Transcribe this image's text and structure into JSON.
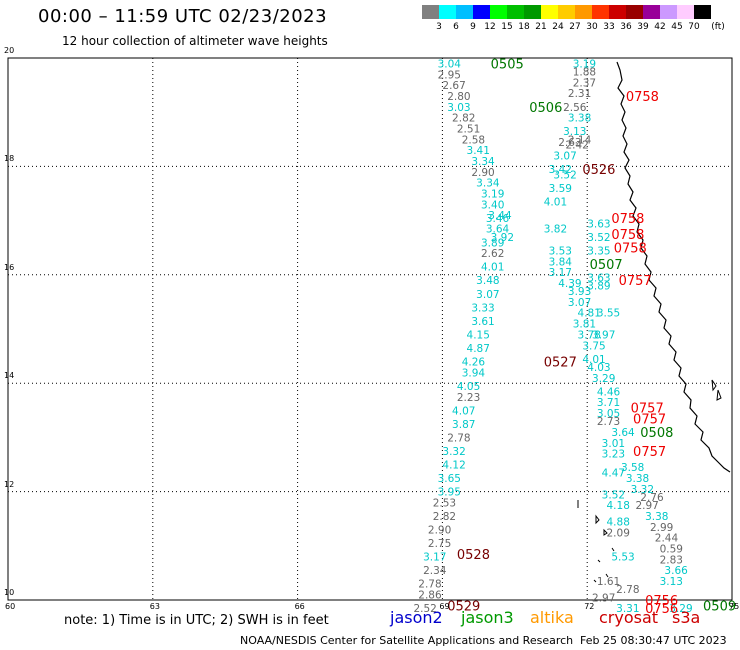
{
  "title": "00:00 – 11:59 UTC 02/23/2023",
  "subtitle": "12 hour collection of altimeter wave heights",
  "colorbar": {
    "unit": "(ft)",
    "colors": [
      "#808080",
      "#00ffff",
      "#00bfff",
      "#0000ff",
      "#00ff00",
      "#00bf00",
      "#009900",
      "#ffff00",
      "#ffcc00",
      "#ff9900",
      "#ff3300",
      "#cc0000",
      "#990000",
      "#990099",
      "#cc99ff",
      "#ffccff",
      "#000000"
    ],
    "labels": [
      "3",
      "6",
      "9",
      "12",
      "15",
      "18",
      "21",
      "24",
      "27",
      "30",
      "33",
      "36",
      "39",
      "42",
      "45",
      "70"
    ]
  },
  "axes": {
    "lon_ticks": [
      "60",
      "63",
      "66",
      "69",
      "72",
      "75"
    ],
    "lat_ticks": [
      "20",
      "18",
      "16",
      "14",
      "12",
      "10"
    ]
  },
  "note": "note: 1) Time is in UTC; 2) SWH is in feet",
  "satellites": [
    {
      "name": "jason2",
      "color": "#0000cc"
    },
    {
      "name": "jason3",
      "color": "#009900"
    },
    {
      "name": "altika",
      "color": "#ff9900"
    },
    {
      "name": "cryosat",
      "color": "#cc0000"
    },
    {
      "name": "s3a",
      "color": "#cc0000"
    }
  ],
  "credit": "NOAA/NESDIS Center for Satellite Applications and Research",
  "timestamp": "Feb 25 08:30:47 UTC 2023",
  "colors": {
    "cyan": "#00c8c8",
    "gray": "#666666",
    "green": "#007700",
    "red": "#ee0000",
    "darkred": "#770000"
  },
  "values": [
    {
      "t": "3.04",
      "c": "cyan",
      "lat": 19.9,
      "lon": 68.9
    },
    {
      "t": "2.95",
      "c": "gray",
      "lat": 19.7,
      "lon": 68.9
    },
    {
      "t": "2.67",
      "c": "gray",
      "lat": 19.5,
      "lon": 69.0
    },
    {
      "t": "2.80",
      "c": "gray",
      "lat": 19.3,
      "lon": 69.1
    },
    {
      "t": "3.03",
      "c": "cyan",
      "lat": 19.1,
      "lon": 69.1
    },
    {
      "t": "2.82",
      "c": "gray",
      "lat": 18.9,
      "lon": 69.2
    },
    {
      "t": "2.51",
      "c": "gray",
      "lat": 18.7,
      "lon": 69.3
    },
    {
      "t": "2.58",
      "c": "gray",
      "lat": 18.5,
      "lon": 69.4
    },
    {
      "t": "3.41",
      "c": "cyan",
      "lat": 18.3,
      "lon": 69.5
    },
    {
      "t": "3.34",
      "c": "cyan",
      "lat": 18.1,
      "lon": 69.6
    },
    {
      "t": "2.90",
      "c": "gray",
      "lat": 17.9,
      "lon": 69.6
    },
    {
      "t": "3.34",
      "c": "cyan",
      "lat": 17.7,
      "lon": 69.7
    },
    {
      "t": "3.19",
      "c": "cyan",
      "lat": 17.5,
      "lon": 69.8
    },
    {
      "t": "3.40",
      "c": "cyan",
      "lat": 17.3,
      "lon": 69.8
    },
    {
      "t": "3.46",
      "c": "cyan",
      "lat": 17.05,
      "lon": 69.9
    },
    {
      "t": "3.64",
      "c": "cyan",
      "lat": 16.85,
      "lon": 69.9
    },
    {
      "t": "3.89",
      "c": "cyan",
      "lat": 16.6,
      "lon": 69.8
    },
    {
      "t": "2.62",
      "c": "gray",
      "lat": 16.4,
      "lon": 69.8
    },
    {
      "t": "4.01",
      "c": "cyan",
      "lat": 16.15,
      "lon": 69.8
    },
    {
      "t": "3.48",
      "c": "cyan",
      "lat": 15.9,
      "lon": 69.7
    },
    {
      "t": "3.07",
      "c": "cyan",
      "lat": 15.65,
      "lon": 69.7
    },
    {
      "t": "3.33",
      "c": "cyan",
      "lat": 15.4,
      "lon": 69.6
    },
    {
      "t": "3.61",
      "c": "cyan",
      "lat": 15.15,
      "lon": 69.6
    },
    {
      "t": "4.15",
      "c": "cyan",
      "lat": 14.9,
      "lon": 69.5
    },
    {
      "t": "4.87",
      "c": "cyan",
      "lat": 14.65,
      "lon": 69.5
    },
    {
      "t": "4.26",
      "c": "cyan",
      "lat": 14.4,
      "lon": 69.4
    },
    {
      "t": "3.94",
      "c": "cyan",
      "lat": 14.2,
      "lon": 69.4
    },
    {
      "t": "4.05",
      "c": "cyan",
      "lat": 13.95,
      "lon": 69.3
    },
    {
      "t": "2.23",
      "c": "gray",
      "lat": 13.75,
      "lon": 69.3
    },
    {
      "t": "4.07",
      "c": "cyan",
      "lat": 13.5,
      "lon": 69.2
    },
    {
      "t": "3.87",
      "c": "cyan",
      "lat": 13.25,
      "lon": 69.2
    },
    {
      "t": "2.78",
      "c": "gray",
      "lat": 13.0,
      "lon": 69.1
    },
    {
      "t": "3.32",
      "c": "cyan",
      "lat": 12.75,
      "lon": 69.0
    },
    {
      "t": "4.12",
      "c": "cyan",
      "lat": 12.5,
      "lon": 69.0
    },
    {
      "t": "3.65",
      "c": "cyan",
      "lat": 12.25,
      "lon": 68.9
    },
    {
      "t": "3.95",
      "c": "cyan",
      "lat": 12.0,
      "lon": 68.9
    },
    {
      "t": "2.53",
      "c": "gray",
      "lat": 11.8,
      "lon": 68.8
    },
    {
      "t": "2.82",
      "c": "gray",
      "lat": 11.55,
      "lon": 68.8
    },
    {
      "t": "2.90",
      "c": "gray",
      "lat": 11.3,
      "lon": 68.7
    },
    {
      "t": "2.75",
      "c": "gray",
      "lat": 11.05,
      "lon": 68.7
    },
    {
      "t": "3.17",
      "c": "cyan",
      "lat": 10.8,
      "lon": 68.6
    },
    {
      "t": "2.34",
      "c": "gray",
      "lat": 10.55,
      "lon": 68.6
    },
    {
      "t": "2.78",
      "c": "gray",
      "lat": 10.3,
      "lon": 68.5
    },
    {
      "t": "2.86",
      "c": "gray",
      "lat": 10.1,
      "lon": 68.5
    },
    {
      "t": "2.52",
      "c": "gray",
      "lat": 9.85,
      "lon": 68.4
    },
    {
      "t": "3.19",
      "c": "cyan",
      "lat": 19.9,
      "lon": 71.7
    },
    {
      "t": "1.88",
      "c": "gray",
      "lat": 19.75,
      "lon": 71.7
    },
    {
      "t": "2.37",
      "c": "gray",
      "lat": 19.55,
      "lon": 71.7
    },
    {
      "t": "2.31",
      "c": "gray",
      "lat": 19.35,
      "lon": 71.6
    },
    {
      "t": "2.56",
      "c": "gray",
      "lat": 19.1,
      "lon": 71.5
    },
    {
      "t": "3.38",
      "c": "cyan",
      "lat": 18.9,
      "lon": 71.6
    },
    {
      "t": "3.13",
      "c": "cyan",
      "lat": 18.65,
      "lon": 71.5
    },
    {
      "t": "2.63",
      "c": "gray",
      "lat": 18.45,
      "lon": 71.4
    },
    {
      "t": "3.07",
      "c": "cyan",
      "lat": 18.2,
      "lon": 71.3
    },
    {
      "t": "3.42",
      "c": "cyan",
      "lat": 17.95,
      "lon": 71.2
    },
    {
      "t": "3.52",
      "c": "cyan",
      "lat": 17.85,
      "lon": 71.3
    },
    {
      "t": "3.59",
      "c": "cyan",
      "lat": 17.6,
      "lon": 71.2
    },
    {
      "t": "4.01",
      "c": "cyan",
      "lat": 17.35,
      "lon": 71.1
    },
    {
      "t": "3.82",
      "c": "cyan",
      "lat": 16.85,
      "lon": 71.1
    },
    {
      "t": "3.53",
      "c": "cyan",
      "lat": 16.45,
      "lon": 71.2
    },
    {
      "t": "3.84",
      "c": "cyan",
      "lat": 16.25,
      "lon": 71.2
    },
    {
      "t": "3.17",
      "c": "cyan",
      "lat": 16.05,
      "lon": 71.2
    },
    {
      "t": "4.39",
      "c": "cyan",
      "lat": 15.85,
      "lon": 71.4
    },
    {
      "t": "3.93",
      "c": "cyan",
      "lat": 15.7,
      "lon": 71.6
    },
    {
      "t": "3.07",
      "c": "cyan",
      "lat": 15.5,
      "lon": 71.6
    },
    {
      "t": "4.81",
      "c": "cyan",
      "lat": 15.3,
      "lon": 71.8
    },
    {
      "t": "3.81",
      "c": "cyan",
      "lat": 15.1,
      "lon": 71.7
    },
    {
      "t": "3.78",
      "c": "cyan",
      "lat": 14.9,
      "lon": 71.8
    },
    {
      "t": "3.75",
      "c": "cyan",
      "lat": 14.7,
      "lon": 71.9
    },
    {
      "t": "4.01",
      "c": "cyan",
      "lat": 14.45,
      "lon": 71.9
    },
    {
      "t": "4.03",
      "c": "cyan",
      "lat": 14.3,
      "lon": 72.0
    },
    {
      "t": "3.29",
      "c": "cyan",
      "lat": 14.1,
      "lon": 72.1
    },
    {
      "t": "4.46",
      "c": "cyan",
      "lat": 13.85,
      "lon": 72.2
    },
    {
      "t": "3.71",
      "c": "cyan",
      "lat": 13.65,
      "lon": 72.2
    },
    {
      "t": "3.05",
      "c": "cyan",
      "lat": 13.45,
      "lon": 72.2
    },
    {
      "t": "2.73",
      "c": "gray",
      "lat": 13.3,
      "lon": 72.2
    },
    {
      "t": "3.64",
      "c": "cyan",
      "lat": 13.1,
      "lon": 72.5
    },
    {
      "t": "3.01",
      "c": "cyan",
      "lat": 12.9,
      "lon": 72.3
    },
    {
      "t": "3.23",
      "c": "cyan",
      "lat": 12.7,
      "lon": 72.3
    },
    {
      "t": "3.58",
      "c": "cyan",
      "lat": 12.45,
      "lon": 72.7
    },
    {
      "t": "4.47",
      "c": "cyan",
      "lat": 12.35,
      "lon": 72.3
    },
    {
      "t": "3.38",
      "c": "cyan",
      "lat": 12.25,
      "lon": 72.8
    },
    {
      "t": "3.32",
      "c": "cyan",
      "lat": 12.05,
      "lon": 72.9
    },
    {
      "t": "3.52",
      "c": "cyan",
      "lat": 11.95,
      "lon": 72.3
    },
    {
      "t": "2.76",
      "c": "gray",
      "lat": 11.9,
      "lon": 73.1
    },
    {
      "t": "4.18",
      "c": "cyan",
      "lat": 11.75,
      "lon": 72.4
    },
    {
      "t": "2.97",
      "c": "gray",
      "lat": 11.75,
      "lon": 73.0
    },
    {
      "t": "3.38",
      "c": "cyan",
      "lat": 11.55,
      "lon": 73.2
    },
    {
      "t": "4.88",
      "c": "cyan",
      "lat": 11.45,
      "lon": 72.4
    },
    {
      "t": "2.09",
      "c": "gray",
      "lat": 11.25,
      "lon": 72.4
    },
    {
      "t": "2.99",
      "c": "gray",
      "lat": 11.35,
      "lon": 73.3
    },
    {
      "t": "2.44",
      "c": "gray",
      "lat": 11.15,
      "lon": 73.4
    },
    {
      "t": "0.59",
      "c": "gray",
      "lat": 10.95,
      "lon": 73.5
    },
    {
      "t": "5.53",
      "c": "cyan",
      "lat": 10.8,
      "lon": 72.5
    },
    {
      "t": "2.83",
      "c": "gray",
      "lat": 10.75,
      "lon": 73.5
    },
    {
      "t": "3.66",
      "c": "cyan",
      "lat": 10.55,
      "lon": 73.6
    },
    {
      "t": "3.13",
      "c": "cyan",
      "lat": 10.35,
      "lon": 73.5
    },
    {
      "t": "1.61",
      "c": "gray",
      "lat": 10.35,
      "lon": 72.2
    },
    {
      "t": "2.78",
      "c": "gray",
      "lat": 10.2,
      "lon": 72.6
    },
    {
      "t": "2.97",
      "c": "gray",
      "lat": 10.05,
      "lon": 72.1
    },
    {
      "t": "3.31",
      "c": "cyan",
      "lat": 9.85,
      "lon": 72.6
    },
    {
      "t": "3.29",
      "c": "cyan",
      "lat": 9.85,
      "lon": 73.7
    },
    {
      "t": "3.63",
      "c": "cyan",
      "lat": 16.95,
      "lon": 72.0
    },
    {
      "t": "3.52",
      "c": "cyan",
      "lat": 16.7,
      "lon": 72.0
    },
    {
      "t": "3.35",
      "c": "cyan",
      "lat": 16.45,
      "lon": 72.0
    },
    {
      "t": "3.63",
      "c": "cyan",
      "lat": 15.95,
      "lon": 72.0
    },
    {
      "t": "3.89",
      "c": "cyan",
      "lat": 15.8,
      "lon": 72.0
    },
    {
      "t": "3.55",
      "c": "cyan",
      "lat": 15.3,
      "lon": 72.2
    },
    {
      "t": "3.97",
      "c": "cyan",
      "lat": 14.9,
      "lon": 72.1
    },
    {
      "t": "3.44",
      "c": "cyan",
      "lat": 17.1,
      "lon": 69.95
    },
    {
      "t": "3.92",
      "c": "cyan",
      "lat": 16.7,
      "lon": 70.0
    },
    {
      "t": "2.14",
      "c": "gray",
      "lat": 18.5,
      "lon": 71.6
    },
    {
      "t": "2.42",
      "c": "gray",
      "lat": 18.4,
      "lon": 71.55
    }
  ],
  "times": [
    {
      "t": "0505",
      "c": "green",
      "lat": 19.9,
      "lon": 70.0
    },
    {
      "t": "0506",
      "c": "green",
      "lat": 19.1,
      "lon": 70.8
    },
    {
      "t": "0758",
      "c": "red",
      "lat": 19.3,
      "lon": 72.8
    },
    {
      "t": "0526",
      "c": "darkred",
      "lat": 17.95,
      "lon": 71.9
    },
    {
      "t": "0758",
      "c": "red",
      "lat": 17.05,
      "lon": 72.5
    },
    {
      "t": "0758",
      "c": "red",
      "lat": 16.75,
      "lon": 72.5
    },
    {
      "t": "0758",
      "c": "red",
      "lat": 16.5,
      "lon": 72.55
    },
    {
      "t": "0507",
      "c": "green",
      "lat": 16.2,
      "lon": 72.05
    },
    {
      "t": "0757",
      "c": "red",
      "lat": 15.9,
      "lon": 72.65
    },
    {
      "t": "0527",
      "c": "darkred",
      "lat": 14.4,
      "lon": 71.1
    },
    {
      "t": "0757",
      "c": "red",
      "lat": 13.55,
      "lon": 72.9
    },
    {
      "t": "0757",
      "c": "red",
      "lat": 13.35,
      "lon": 72.95
    },
    {
      "t": "0508",
      "c": "green",
      "lat": 13.1,
      "lon": 73.1
    },
    {
      "t": "0757",
      "c": "red",
      "lat": 12.75,
      "lon": 72.95
    },
    {
      "t": "0528",
      "c": "darkred",
      "lat": 10.85,
      "lon": 69.3
    },
    {
      "t": "0529",
      "c": "darkred",
      "lat": 9.9,
      "lon": 69.1
    },
    {
      "t": "0756",
      "c": "red",
      "lat": 10.0,
      "lon": 73.2
    },
    {
      "t": "0756",
      "c": "red",
      "lat": 9.85,
      "lon": 73.2
    },
    {
      "t": "0509",
      "c": "green",
      "lat": 9.9,
      "lon": 74.4
    }
  ]
}
